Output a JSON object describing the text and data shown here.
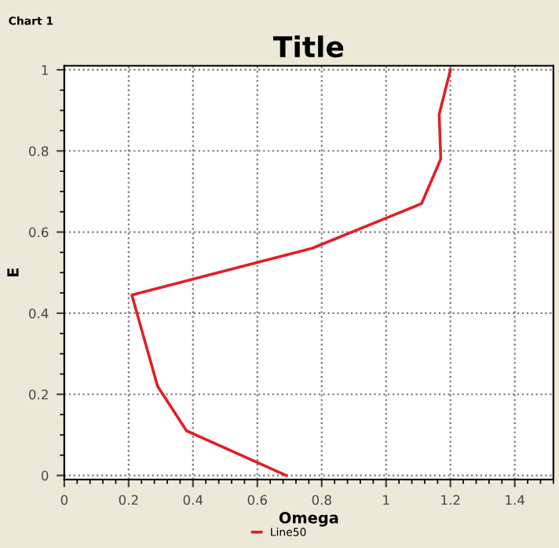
{
  "chart_data": {
    "type": "line",
    "title": "Title",
    "xlabel": "Omega",
    "ylabel": "E",
    "annotations": [
      "Chart 1"
    ],
    "series": [
      {
        "name": "Line50",
        "color": "#e0202a",
        "x": [
          0.69,
          0.38,
          0.29,
          0.21,
          0.77,
          1.11,
          1.17,
          1.165,
          1.2
        ],
        "values": [
          0,
          0.11,
          0.22,
          0.445,
          0.56,
          0.67,
          0.78,
          0.89,
          1.0
        ]
      }
    ],
    "xlim": [
      0,
      1.52
    ],
    "ylim": [
      -0.01,
      1.01
    ],
    "xticks": [
      0,
      0.2,
      0.4,
      0.6,
      0.8,
      1,
      1.2,
      1.4
    ],
    "yticks": [
      0,
      0.2,
      0.4,
      0.6,
      0.8,
      1
    ],
    "grid": true,
    "legend": "bottom",
    "marker": "none",
    "line_style": "solid"
  }
}
